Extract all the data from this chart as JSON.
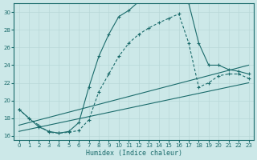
{
  "xlabel": "Humidex (Indice chaleur)",
  "ylabel": "",
  "bg_color": "#cce8e8",
  "grid_color": "#b8d8d8",
  "line_color": "#1a6b6b",
  "xlim": [
    -0.5,
    23.5
  ],
  "ylim": [
    15.5,
    31.0
  ],
  "xticks": [
    0,
    1,
    2,
    3,
    4,
    5,
    6,
    7,
    8,
    9,
    10,
    11,
    12,
    13,
    14,
    15,
    16,
    17,
    18,
    19,
    20,
    21,
    22,
    23
  ],
  "yticks": [
    16,
    18,
    20,
    22,
    24,
    26,
    28,
    30
  ],
  "curve1_x": [
    0,
    1,
    2,
    3,
    4,
    5,
    6,
    7,
    8,
    9,
    10,
    11,
    12,
    13,
    14,
    15,
    16,
    17,
    18,
    19,
    20,
    21,
    22,
    23
  ],
  "curve1_y": [
    19.0,
    18.0,
    17.0,
    16.5,
    16.3,
    16.5,
    17.5,
    21.5,
    25.0,
    27.5,
    29.5,
    30.2,
    31.2,
    31.5,
    31.3,
    31.8,
    31.5,
    31.0,
    26.5,
    24.0,
    24.0,
    23.5,
    23.3,
    23.0
  ],
  "curve2_x": [
    0,
    1,
    2,
    3,
    4,
    5,
    6,
    7,
    8,
    9,
    10,
    11,
    12,
    13,
    14,
    15,
    16,
    17,
    18,
    19,
    20,
    21,
    22,
    23
  ],
  "curve2_y": [
    19.0,
    18.0,
    17.2,
    16.4,
    16.3,
    16.4,
    16.6,
    17.8,
    21.0,
    23.0,
    25.0,
    26.5,
    27.5,
    28.2,
    28.8,
    29.3,
    29.8,
    26.5,
    21.5,
    22.0,
    22.8,
    23.0,
    23.0,
    22.5
  ],
  "line1_x": [
    0,
    23
  ],
  "line1_y": [
    17.2,
    24.0
  ],
  "line2_x": [
    0,
    23
  ],
  "line2_y": [
    16.5,
    22.0
  ]
}
